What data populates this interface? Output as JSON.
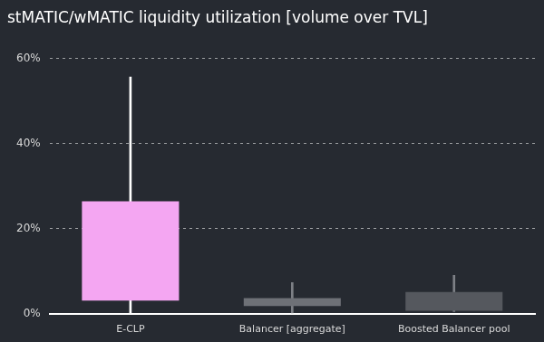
{
  "chart_data": {
    "type": "boxplot",
    "title": "stMATIC/wMATIC liquidity utilization [volume over TVL]",
    "categories": [
      "E-CLP",
      "Balancer [aggregate]",
      "Boosted Balancer pool"
    ],
    "min": [
      0,
      0.2,
      0.5
    ],
    "q1": [
      3.1,
      1.8,
      0.7
    ],
    "q3": [
      26.4,
      3.7,
      5.1
    ],
    "max": [
      55.6,
      7.3,
      9
    ],
    "colors": [
      "#f4a6f2",
      "#6e7177",
      "#55585e"
    ],
    "ylim": [
      0,
      60
    ],
    "yticks": [
      {
        "value": 0,
        "label": "0%"
      },
      {
        "value": 20,
        "label": "20%"
      },
      {
        "value": 40,
        "label": "40%"
      },
      {
        "value": 60,
        "label": "60%"
      }
    ],
    "grid": true
  }
}
